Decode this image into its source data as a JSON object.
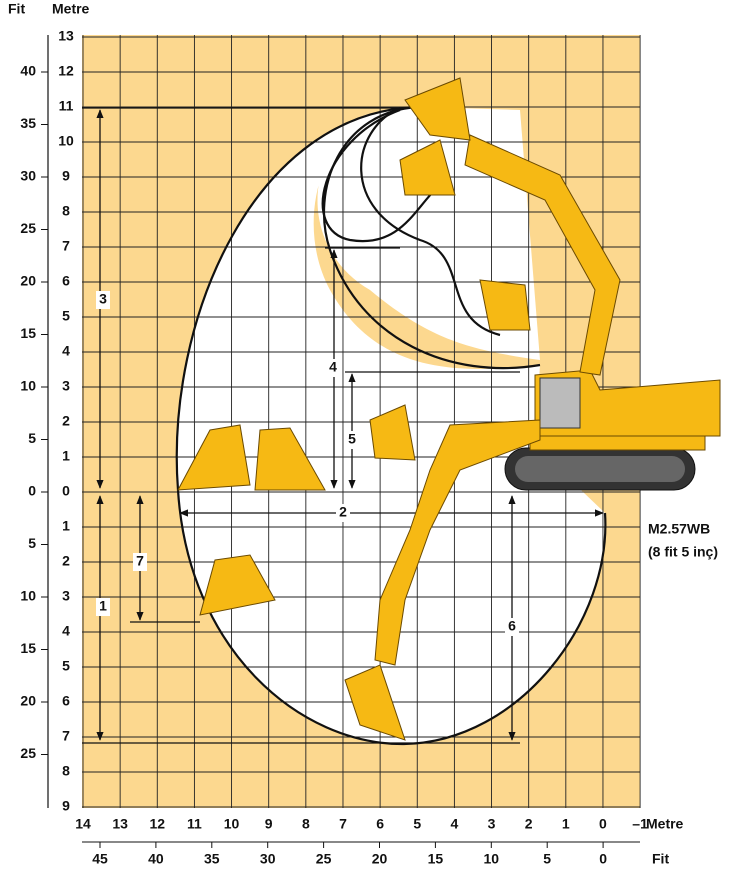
{
  "axes": {
    "top_left_feet_title": "Fit",
    "top_left_metre_title": "Metre",
    "bottom_metre_title": "Metre",
    "bottom_feet_title": "Fit",
    "left_metre_labels": [
      "13",
      "12",
      "11",
      "10",
      "9",
      "8",
      "7",
      "6",
      "5",
      "4",
      "3",
      "2",
      "1",
      "0",
      "1",
      "2",
      "3",
      "4",
      "5",
      "6",
      "7",
      "8",
      "9"
    ],
    "left_feet_labels": [
      "40",
      "35",
      "30",
      "25",
      "20",
      "15",
      "10",
      "5",
      "0",
      "5",
      "10",
      "15",
      "20",
      "25"
    ],
    "bottom_metre_labels": [
      "14",
      "13",
      "12",
      "11",
      "10",
      "9",
      "8",
      "7",
      "6",
      "5",
      "4",
      "3",
      "2",
      "1",
      "0",
      "–1"
    ],
    "bottom_feet_labels": [
      "45",
      "40",
      "35",
      "30",
      "25",
      "20",
      "15",
      "10",
      "5",
      "0"
    ]
  },
  "dimensions": [
    {
      "label": "1"
    },
    {
      "label": "2"
    },
    {
      "label": "3"
    },
    {
      "label": "4"
    },
    {
      "label": "5"
    },
    {
      "label": "6"
    },
    {
      "label": "7"
    }
  ],
  "boom": {
    "name": "M2.57WB",
    "length": "(8 fit 5 inç)"
  }
}
